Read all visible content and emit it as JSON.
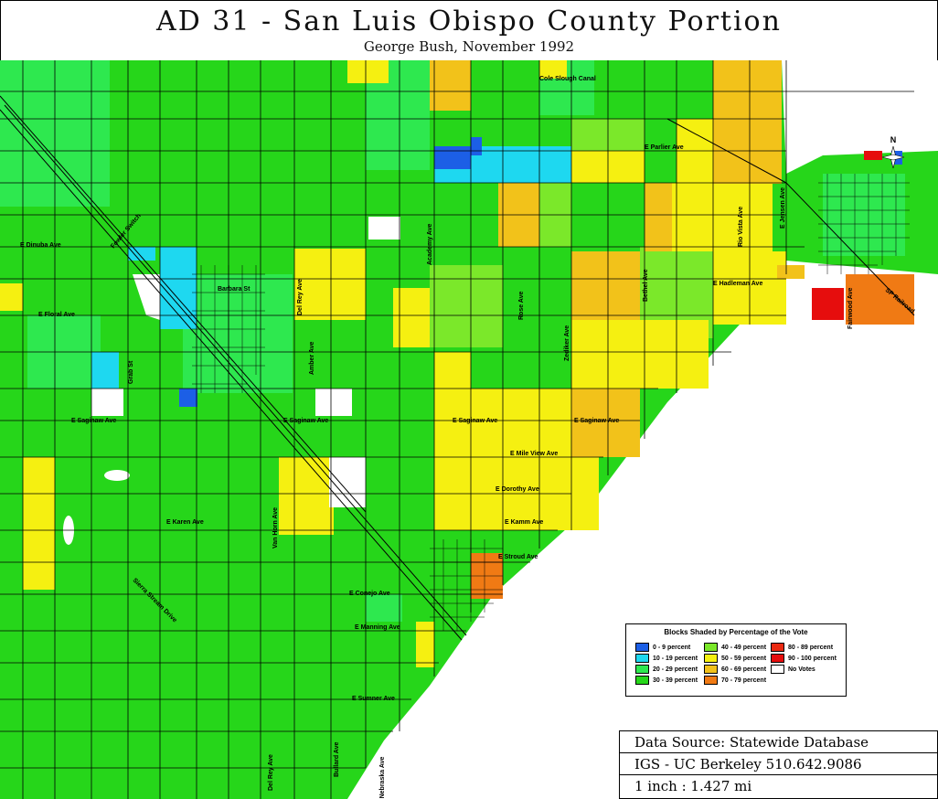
{
  "header": {
    "title": "AD 31 - San Luis Obispo County Portion",
    "subtitle": "George Bush, November 1992"
  },
  "legend": {
    "title": "Blocks Shaded by Percentage of the Vote",
    "items": [
      {
        "label": "0 - 9 percent",
        "color": "#1c5fe6"
      },
      {
        "label": "10 - 19 percent",
        "color": "#1ed8f0"
      },
      {
        "label": "20 - 29 percent",
        "color": "#2ee84f"
      },
      {
        "label": "30 - 39 percent",
        "color": "#26d61a"
      },
      {
        "label": "40 - 49 percent",
        "color": "#7be82a"
      },
      {
        "label": "50 - 59 percent",
        "color": "#f5f011"
      },
      {
        "label": "60 - 69 percent",
        "color": "#f2c21a"
      },
      {
        "label": "70 - 79 percent",
        "color": "#f07a14"
      },
      {
        "label": "80 - 89 percent",
        "color": "#ea2a12"
      },
      {
        "label": "90 - 100 percent",
        "color": "#e60d0d"
      },
      {
        "label": "No Votes",
        "color": "#ffffff"
      }
    ]
  },
  "source_box": {
    "line1": "Data Source: Statewide Database",
    "line2": "IGS - UC Berkeley 510.642.9086",
    "line3": "1 inch : 1.427 mi"
  },
  "north_label": "N",
  "street_labels": [
    "Cole Slough Canal",
    "E Parlier Ave",
    "E Dinuba Ave",
    "E Floral Ave",
    "E Saginaw Ave",
    "E Saginaw Ave",
    "E Saginaw Ave",
    "E Saginaw Ave",
    "E Mile View Ave",
    "E Dorothy Ave",
    "E Karen Ave",
    "E Kamm Ave",
    "E Stroud Ave",
    "E Conejo Ave",
    "E Manning Ave",
    "E Sumner Ave",
    "E Nebraska Ave",
    "Rio Vista Ave",
    "E Jensen Ave",
    "Bethel Ave",
    "Zediker Ave",
    "Rose Ave",
    "Academy Ave",
    "Del Rey Ave",
    "Amber Ave",
    "Fowler Switch",
    "Barbara St",
    "Grab St",
    "Bullard Ave",
    "Del Rey Ave",
    "Sierra Stream Drive",
    "Van Horn Ave",
    "E Hadleman Ave",
    "Fairwood Ave",
    "SP Railroad"
  ]
}
